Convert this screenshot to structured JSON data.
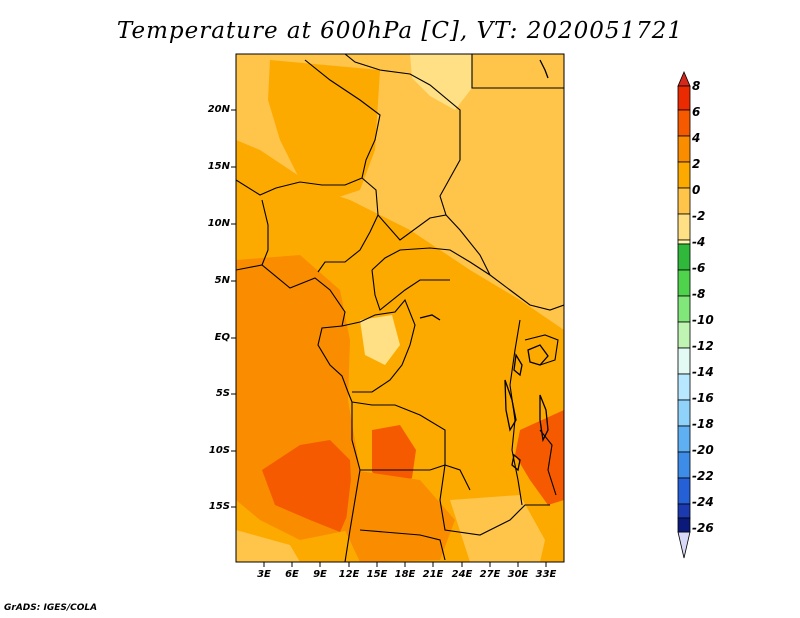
{
  "title": "Temperature at 600hPa [C], VT: 2020051721",
  "credit": "GrADS: IGES/COLA",
  "map": {
    "lat_labels": [
      "20N",
      "15N",
      "10N",
      "5N",
      "EQ",
      "5S",
      "10S",
      "15S"
    ],
    "lon_labels": [
      "3E",
      "6E",
      "9E",
      "12E",
      "15E",
      "18E",
      "21E",
      "24E",
      "27E",
      "30E",
      "33E"
    ]
  },
  "colorbar": {
    "labels": [
      "8",
      "6",
      "4",
      "2",
      "0",
      "-2",
      "-4",
      "-6",
      "-8",
      "-10",
      "-12",
      "-14",
      "-16",
      "-18",
      "-20",
      "-22",
      "-24",
      "-26"
    ],
    "colors": [
      "#ea2a00",
      "#f55a00",
      "#fa8c00",
      "#fdaa00",
      "#ffc44a",
      "#ffe084",
      "#fff7b0",
      "#2fb83a",
      "#4fd24c",
      "#82e77a",
      "#bff4b3",
      "#e3f9f3",
      "#b7e8ff",
      "#8fd2fa",
      "#5fb0f2",
      "#3d8ce8",
      "#2560d6",
      "#1c3ab0",
      "#0b1a7a"
    ],
    "top_arrow_color": "#d4281a",
    "bottom_arrow_color": "#d8d8f8"
  },
  "field_colors": {
    "base": "#fdaa00",
    "warm": "#fa8c00",
    "hot": "#f55a00",
    "cool": "#ffc44a",
    "cooler": "#ffe084"
  }
}
